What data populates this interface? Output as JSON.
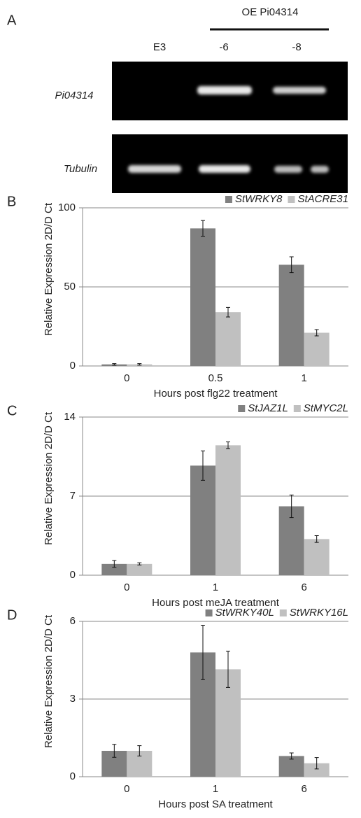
{
  "gel": {
    "panel_label": "A",
    "group_label": "OE Pi04314",
    "lanes": [
      "E3",
      "-6",
      "-8"
    ],
    "rows": [
      "Pi04314",
      "Tubulin"
    ]
  },
  "chart_data": [
    {
      "type": "bar",
      "panel_label": "B",
      "xlabel": "Hours post flg22 treatment",
      "ylabel": "Relative Expression 2D/D Ct",
      "categories": [
        "0",
        "0.5",
        "1"
      ],
      "ylim": [
        0,
        100
      ],
      "yticks": [
        0,
        50,
        100
      ],
      "grid": true,
      "legend": "upper right",
      "series": [
        {
          "name": "StWRKY8",
          "color": "#808080",
          "values": [
            1,
            87,
            64
          ],
          "errors": [
            0.5,
            5,
            5
          ]
        },
        {
          "name": "StACRE31",
          "color": "#c0c0c0",
          "values": [
            1,
            34,
            21
          ],
          "errors": [
            0.5,
            3,
            2
          ]
        }
      ]
    },
    {
      "type": "bar",
      "panel_label": "C",
      "xlabel": "Hours post meJA treatment",
      "ylabel": "Relative Expression 2D/D Ct",
      "categories": [
        "0",
        "1",
        "6"
      ],
      "ylim": [
        0,
        14
      ],
      "yticks": [
        0,
        7,
        14
      ],
      "grid": true,
      "legend": "upper right",
      "series": [
        {
          "name": "StJAZ1L",
          "color": "#808080",
          "values": [
            1,
            9.7,
            6.1
          ],
          "errors": [
            0.3,
            1.3,
            1.0
          ]
        },
        {
          "name": "StMYC2L",
          "color": "#c0c0c0",
          "values": [
            1,
            11.5,
            3.2
          ],
          "errors": [
            0.1,
            0.3,
            0.3
          ]
        }
      ]
    },
    {
      "type": "bar",
      "panel_label": "D",
      "xlabel": "Hours post SA treatment",
      "ylabel": "Relative Expression 2D/D Ct",
      "categories": [
        "0",
        "1",
        "6"
      ],
      "ylim": [
        0,
        6
      ],
      "yticks": [
        0,
        3,
        6
      ],
      "grid": true,
      "legend": "upper right",
      "series": [
        {
          "name": "StWRKY40L",
          "color": "#808080",
          "values": [
            1,
            4.8,
            0.8
          ],
          "errors": [
            0.25,
            1.05,
            0.12
          ]
        },
        {
          "name": "StWRKY16L",
          "color": "#c0c0c0",
          "values": [
            1,
            4.15,
            0.52
          ],
          "errors": [
            0.2,
            0.7,
            0.22
          ]
        }
      ]
    }
  ]
}
